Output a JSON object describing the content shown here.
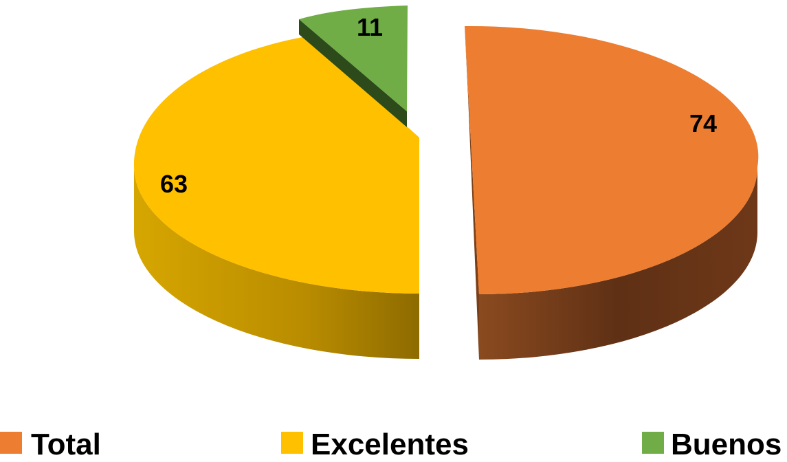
{
  "chart_data": {
    "type": "pie",
    "style": "3d-exploded",
    "title": "",
    "slices": [
      {
        "name": "Total",
        "value": 74,
        "color": "#ED7D31",
        "label": "74"
      },
      {
        "name": "Excelentes",
        "value": 63,
        "color": "#FFC000",
        "label": "63"
      },
      {
        "name": "Buenos",
        "value": 11,
        "color": "#70AD47",
        "label": "11"
      }
    ],
    "legend": {
      "placement": "bottom",
      "entries": [
        "Total",
        "Excelentes",
        "Buenos"
      ]
    }
  }
}
